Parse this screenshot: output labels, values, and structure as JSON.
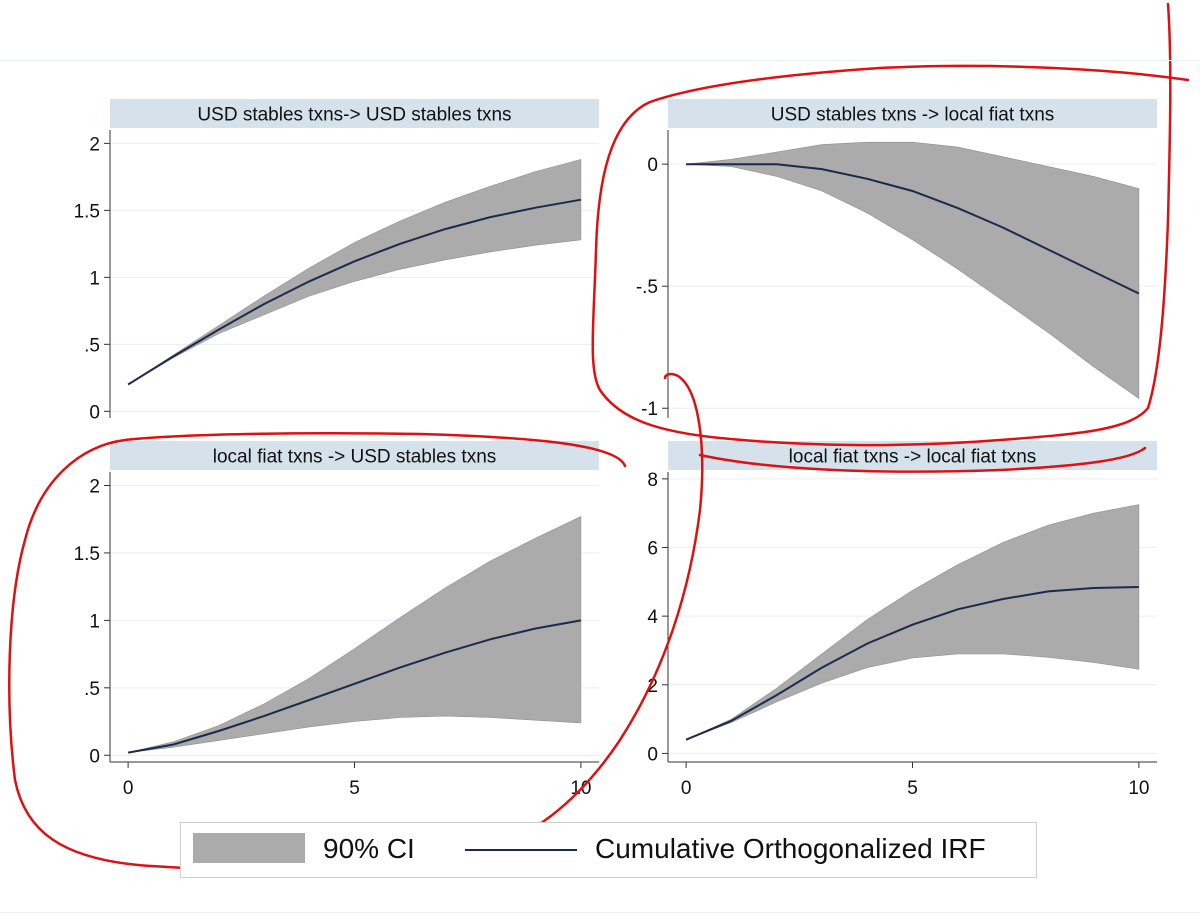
{
  "colors": {
    "ci_fill": "#ababab",
    "irf_line": "#1a2b4c",
    "title_bar": "#d5e2eb",
    "grid": "#e9eef2",
    "axis": "#333333",
    "annotation": "#dd1111"
  },
  "legend": {
    "ci_label": "90% CI",
    "irf_label": "Cumulative Orthogonalized IRF"
  },
  "chart_data": [
    {
      "type": "area",
      "title": "USD stables txns-> USD stables txns",
      "x": [
        0,
        1,
        2,
        3,
        4,
        5,
        6,
        7,
        8,
        9,
        10
      ],
      "xlim": [
        -0.4,
        10.4
      ],
      "ylim": [
        -0.05,
        2.1
      ],
      "yticks": [
        0,
        0.5,
        1,
        1.5,
        2
      ],
      "ytick_labels": [
        "0",
        ".5",
        "1",
        "1.5",
        "2"
      ],
      "xticks": [],
      "xtick_labels": [],
      "grid": true,
      "series": [
        {
          "name": "90% CI",
          "kind": "band",
          "lower": [
            0.2,
            0.4,
            0.58,
            0.72,
            0.86,
            0.97,
            1.06,
            1.13,
            1.19,
            1.24,
            1.28
          ],
          "upper": [
            0.2,
            0.42,
            0.64,
            0.86,
            1.07,
            1.26,
            1.42,
            1.56,
            1.68,
            1.79,
            1.88
          ]
        },
        {
          "name": "Cumulative Orthogonalized IRF",
          "kind": "line",
          "values": [
            0.2,
            0.41,
            0.61,
            0.8,
            0.97,
            1.12,
            1.25,
            1.36,
            1.45,
            1.52,
            1.58
          ]
        }
      ]
    },
    {
      "type": "area",
      "title": "USD stables txns -> local fiat txns",
      "x": [
        0,
        1,
        2,
        3,
        4,
        5,
        6,
        7,
        8,
        9,
        10
      ],
      "xlim": [
        -0.4,
        10.4
      ],
      "ylim": [
        -1.04,
        0.14
      ],
      "yticks": [
        -1,
        -0.5,
        0
      ],
      "ytick_labels": [
        "-1",
        "-.5",
        "0"
      ],
      "xticks": [],
      "xtick_labels": [],
      "grid": true,
      "series": [
        {
          "name": "90% CI",
          "kind": "band",
          "lower": [
            0,
            -0.01,
            -0.05,
            -0.11,
            -0.2,
            -0.31,
            -0.43,
            -0.56,
            -0.69,
            -0.83,
            -0.96
          ],
          "upper": [
            0,
            0.02,
            0.05,
            0.08,
            0.09,
            0.09,
            0.07,
            0.03,
            -0.01,
            -0.05,
            -0.1
          ]
        },
        {
          "name": "Cumulative Orthogonalized IRF",
          "kind": "line",
          "values": [
            0,
            0,
            0,
            -0.02,
            -0.06,
            -0.11,
            -0.18,
            -0.26,
            -0.35,
            -0.44,
            -0.53
          ]
        }
      ]
    },
    {
      "type": "area",
      "title": "local fiat txns -> USD stables txns",
      "x": [
        0,
        1,
        2,
        3,
        4,
        5,
        6,
        7,
        8,
        9,
        10
      ],
      "xlim": [
        -0.4,
        10.4
      ],
      "ylim": [
        -0.05,
        2.1
      ],
      "yticks": [
        0,
        0.5,
        1,
        1.5,
        2
      ],
      "ytick_labels": [
        "0",
        ".5",
        "1",
        "1.5",
        "2"
      ],
      "xticks": [
        0,
        5,
        10
      ],
      "xtick_labels": [
        "0",
        "5",
        "10"
      ],
      "grid": true,
      "series": [
        {
          "name": "90% CI",
          "kind": "band",
          "lower": [
            0.02,
            0.06,
            0.11,
            0.16,
            0.21,
            0.25,
            0.28,
            0.29,
            0.28,
            0.26,
            0.24
          ],
          "upper": [
            0.02,
            0.1,
            0.22,
            0.38,
            0.57,
            0.79,
            1.02,
            1.24,
            1.44,
            1.61,
            1.77
          ]
        },
        {
          "name": "Cumulative Orthogonalized IRF",
          "kind": "line",
          "values": [
            0.02,
            0.08,
            0.18,
            0.29,
            0.41,
            0.53,
            0.65,
            0.76,
            0.86,
            0.94,
            1.0
          ]
        }
      ]
    },
    {
      "type": "area",
      "title": "local fiat txns -> local fiat txns",
      "x": [
        0,
        1,
        2,
        3,
        4,
        5,
        6,
        7,
        8,
        9,
        10
      ],
      "xlim": [
        -0.4,
        10.4
      ],
      "ylim": [
        -0.25,
        8.2
      ],
      "yticks": [
        0,
        2,
        4,
        6,
        8
      ],
      "ytick_labels": [
        "0",
        "2",
        "4",
        "6",
        "8"
      ],
      "xticks": [
        0,
        5,
        10
      ],
      "xtick_labels": [
        "0",
        "5",
        "10"
      ],
      "grid": true,
      "series": [
        {
          "name": "90% CI",
          "kind": "band",
          "lower": [
            0.4,
            0.9,
            1.5,
            2.05,
            2.5,
            2.78,
            2.9,
            2.9,
            2.8,
            2.65,
            2.45
          ],
          "upper": [
            0.4,
            1.0,
            1.9,
            2.9,
            3.9,
            4.75,
            5.5,
            6.15,
            6.65,
            7.0,
            7.25
          ]
        },
        {
          "name": "Cumulative Orthogonalized IRF",
          "kind": "line",
          "values": [
            0.4,
            0.95,
            1.7,
            2.5,
            3.2,
            3.75,
            4.2,
            4.5,
            4.72,
            4.82,
            4.85
          ]
        }
      ]
    }
  ]
}
